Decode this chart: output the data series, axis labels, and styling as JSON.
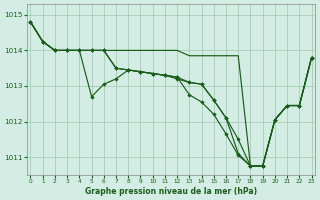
{
  "title": "Graphe pression niveau de la mer (hPa)",
  "bg_color": "#d4ede4",
  "line_color": "#1a5c1a",
  "grid_color": "#a0c8a8",
  "xlim": [
    -0.3,
    23.3
  ],
  "ylim": [
    1010.5,
    1015.3
  ],
  "yticks": [
    1011,
    1012,
    1013,
    1014,
    1015
  ],
  "xticks": [
    0,
    1,
    2,
    3,
    4,
    5,
    6,
    7,
    8,
    9,
    10,
    11,
    12,
    13,
    14,
    15,
    16,
    17,
    18,
    19,
    20,
    21,
    22,
    23
  ],
  "lines": [
    {
      "x": [
        0,
        1,
        2,
        3,
        4,
        5,
        6,
        7,
        8,
        9,
        10,
        11,
        12,
        13,
        14,
        15,
        16,
        17,
        18,
        19,
        20,
        21,
        22,
        23
      ],
      "y": [
        1014.8,
        1014.25,
        1014.0,
        1014.0,
        1014.0,
        1014.0,
        1014.0,
        1014.0,
        1014.0,
        1014.0,
        1014.0,
        1014.0,
        1014.0,
        1013.85,
        1013.85,
        1013.85,
        1013.85,
        1013.85,
        1010.75,
        1010.75,
        1012.05,
        1012.45,
        1012.45,
        1013.8
      ],
      "marker": false
    },
    {
      "x": [
        0,
        1,
        2,
        3,
        4,
        5,
        6,
        7,
        8,
        9,
        10,
        11,
        12,
        13,
        14,
        15,
        16,
        17,
        18,
        19,
        20,
        21,
        22,
        23
      ],
      "y": [
        1014.8,
        1014.25,
        1014.0,
        1014.0,
        1014.0,
        1012.7,
        1013.05,
        1013.2,
        1013.45,
        1013.4,
        1013.35,
        1013.3,
        1013.2,
        1013.1,
        1013.05,
        1012.6,
        1012.1,
        1011.5,
        1010.75,
        1010.75,
        1012.05,
        1012.45,
        1012.45,
        1013.8
      ],
      "marker": true
    },
    {
      "x": [
        0,
        1,
        2,
        3,
        4,
        5,
        6,
        7,
        8,
        9,
        10,
        11,
        12,
        13,
        14,
        15,
        16,
        17,
        18,
        19,
        20,
        21,
        22,
        23
      ],
      "y": [
        1014.8,
        1014.25,
        1014.0,
        1014.0,
        1014.0,
        1014.0,
        1014.0,
        1013.5,
        1013.45,
        1013.4,
        1013.35,
        1013.3,
        1013.25,
        1013.1,
        1013.05,
        1012.6,
        1012.1,
        1011.1,
        1010.75,
        1010.75,
        1012.05,
        1012.45,
        1012.45,
        1013.8
      ],
      "marker": true
    },
    {
      "x": [
        0,
        1,
        2,
        3,
        4,
        5,
        6,
        7,
        8,
        9,
        10,
        11,
        12,
        13,
        14,
        15,
        16,
        17,
        18,
        19,
        20,
        21,
        22,
        23
      ],
      "y": [
        1014.8,
        1014.25,
        1014.0,
        1014.0,
        1014.0,
        1014.0,
        1014.0,
        1013.5,
        1013.45,
        1013.4,
        1013.35,
        1013.3,
        1013.25,
        1012.75,
        1012.55,
        1012.2,
        1011.65,
        1011.05,
        1010.75,
        1010.75,
        1012.05,
        1012.45,
        1012.45,
        1013.8
      ],
      "marker": true
    }
  ]
}
